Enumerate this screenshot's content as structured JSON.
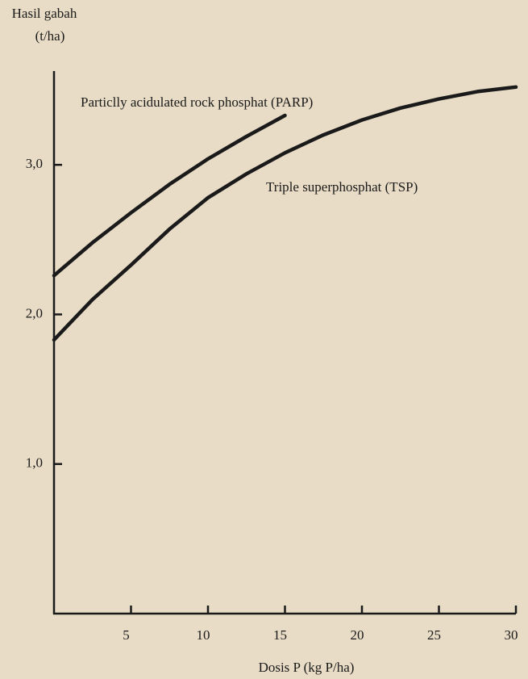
{
  "chart_data": {
    "type": "line",
    "ylabel": [
      "Hasil gabah",
      "(t/ha)"
    ],
    "xlabel": "Dosis P (kg P/ha)",
    "xlim": [
      0,
      30
    ],
    "xticks": [
      5,
      10,
      15,
      20,
      25,
      30
    ],
    "ylim": [
      0,
      3.6
    ],
    "yticks": [
      {
        "value": 1,
        "label": "1,0"
      },
      {
        "value": 2,
        "label": "2,0"
      },
      {
        "value": 3,
        "label": "3,0"
      }
    ],
    "grid": false,
    "series": [
      {
        "name": "Particlly acidulated rock phosphat (PARP)",
        "color": "#1a1a1a",
        "x": [
          0,
          2.5,
          5,
          7.5,
          10,
          12.5,
          15
        ],
        "values": [
          2.26,
          2.48,
          2.68,
          2.87,
          3.04,
          3.19,
          3.33
        ]
      },
      {
        "name": "Triple superphosphat (TSP)",
        "color": "#1a1a1a",
        "x": [
          0,
          2.5,
          5,
          7.5,
          10,
          12.5,
          15,
          17.5,
          20,
          22.5,
          25,
          27.5,
          30
        ],
        "values": [
          1.83,
          2.1,
          2.33,
          2.57,
          2.78,
          2.94,
          3.08,
          3.2,
          3.3,
          3.38,
          3.44,
          3.49,
          3.52
        ]
      }
    ]
  }
}
